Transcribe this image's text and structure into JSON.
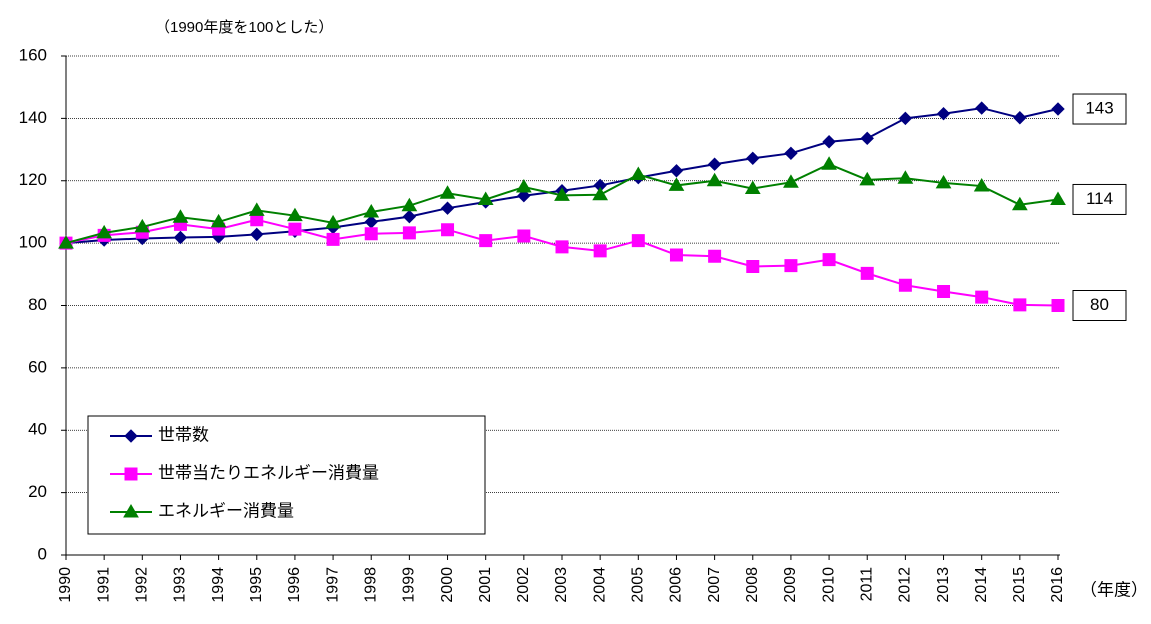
{
  "chart_data": {
    "type": "line",
    "subtitle": "（1990年度を100とした）",
    "x_label": "（年度）",
    "categories": [
      "1990",
      "1991",
      "1992",
      "1993",
      "1994",
      "1995",
      "1996",
      "1997",
      "1998",
      "1999",
      "2000",
      "2001",
      "2002",
      "2003",
      "2004",
      "2005",
      "2006",
      "2007",
      "2008",
      "2009",
      "2010",
      "2011",
      "2012",
      "2013",
      "2014",
      "2015",
      "2016"
    ],
    "series": [
      {
        "name": "世帯数",
        "color": "#000080",
        "marker": "diamond",
        "values": [
          100,
          101,
          101.5,
          101.8,
          102,
          102.8,
          103.8,
          105,
          106.8,
          108.5,
          111.2,
          113.2,
          115.2,
          116.8,
          118.5,
          121,
          123.2,
          125.3,
          127.2,
          128.8,
          132.5,
          133.6,
          140,
          141.5,
          143.3,
          140.2,
          143
        ]
      },
      {
        "name": "世帯当たりエネルギー消費量",
        "color": "#ff00ff",
        "marker": "square",
        "values": [
          100,
          102.5,
          103.5,
          106,
          104.5,
          107.5,
          104.5,
          101.2,
          103,
          103.3,
          104.3,
          100.8,
          102.3,
          98.8,
          97.5,
          100.8,
          96.2,
          95.8,
          92.5,
          92.8,
          94.7,
          90.3,
          86.5,
          84.5,
          82.7,
          80.2,
          80
        ]
      },
      {
        "name": "エネルギー消費量",
        "color": "#008000",
        "marker": "triangle",
        "values": [
          100,
          103.3,
          105.2,
          108.3,
          106.8,
          110.5,
          108.8,
          106.5,
          110,
          112,
          116,
          114,
          118,
          115.3,
          115.5,
          122,
          118.5,
          120,
          117.5,
          119.5,
          125.3,
          120.3,
          120.8,
          119.3,
          118.3,
          112.3,
          114
        ]
      }
    ],
    "ylim": [
      0,
      160
    ],
    "yticks": [
      0,
      20,
      40,
      60,
      80,
      100,
      120,
      140,
      160
    ],
    "grid": true,
    "legend": "lower left",
    "end_labels": true
  }
}
